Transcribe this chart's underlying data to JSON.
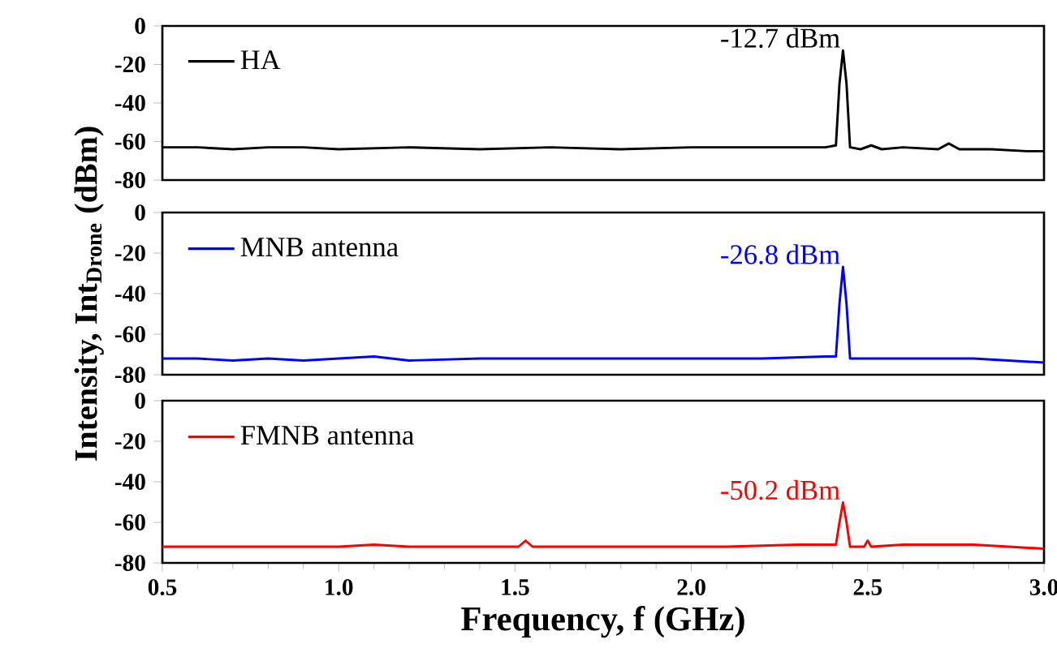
{
  "chart_data": [
    {
      "type": "line",
      "xlim": [
        0.5,
        3.0
      ],
      "ylim": [
        -80,
        0
      ],
      "yticks": [
        -80,
        -60,
        -40,
        -20,
        0
      ],
      "tick_labels": "y",
      "legend": "top left",
      "line_style": "solid",
      "series": [
        {
          "name": "HA",
          "color": "#000000",
          "x": [
            0.5,
            0.6,
            0.7,
            0.8,
            0.9,
            1.0,
            1.2,
            1.4,
            1.6,
            1.8,
            2.0,
            2.2,
            2.38,
            2.41,
            2.42,
            2.43,
            2.44,
            2.45,
            2.48,
            2.51,
            2.54,
            2.6,
            2.7,
            2.73,
            2.76,
            2.85,
            2.95,
            3.0
          ],
          "values": [
            -63,
            -63,
            -64,
            -63,
            -63,
            -64,
            -63,
            -64,
            -63,
            -64,
            -63,
            -63,
            -63,
            -62,
            -30,
            -12.7,
            -30,
            -63,
            -64,
            -62,
            -64,
            -63,
            -64,
            -61,
            -64,
            -64,
            -65,
            -65
          ]
        }
      ],
      "annotations": [
        "-12.7 dBm"
      ]
    },
    {
      "type": "line",
      "xlim": [
        0.5,
        3.0
      ],
      "ylim": [
        -80,
        0
      ],
      "yticks": [
        -80,
        -60,
        -40,
        -20,
        0
      ],
      "tick_labels": "y",
      "legend": "top left",
      "line_style": "solid",
      "ylabel": "Intensity, Int$_{Drone}$ (dBm)",
      "series": [
        {
          "name": "MNB antenna",
          "color": "#0000ff",
          "x": [
            0.5,
            0.6,
            0.7,
            0.8,
            0.9,
            1.0,
            1.1,
            1.2,
            1.4,
            1.6,
            1.8,
            2.0,
            2.2,
            2.38,
            2.41,
            2.42,
            2.43,
            2.44,
            2.45,
            2.5,
            2.6,
            2.7,
            2.8,
            2.9,
            3.0
          ],
          "values": [
            -72,
            -72,
            -73,
            -72,
            -73,
            -72,
            -71,
            -73,
            -72,
            -72,
            -72,
            -72,
            -72,
            -71,
            -71,
            -45,
            -26.8,
            -45,
            -72,
            -72,
            -72,
            -72,
            -72,
            -73,
            -74
          ]
        }
      ],
      "annotations": [
        "-26.8 dBm"
      ]
    },
    {
      "type": "line",
      "xlim": [
        0.5,
        3.0
      ],
      "ylim": [
        -80,
        0
      ],
      "xticks": [
        {
          "value": 0.5,
          "label": "0.5"
        },
        {
          "value": 1.0,
          "label": "1.0"
        },
        {
          "value": 1.5,
          "label": "1.5"
        },
        {
          "value": 2.0,
          "label": "2.0"
        },
        {
          "value": 2.5,
          "label": "2.5"
        },
        {
          "value": 3.0,
          "label": "3.0"
        }
      ],
      "yticks": [
        -80,
        -60,
        -40,
        -20,
        0
      ],
      "legend": "top left",
      "line_style": "solid",
      "xlabel": "Frequency, f (GHz)",
      "series": [
        {
          "name": "FMNB antenna",
          "color": "#ff0000",
          "x": [
            0.5,
            0.6,
            0.8,
            1.0,
            1.1,
            1.2,
            1.4,
            1.51,
            1.53,
            1.55,
            1.7,
            1.9,
            2.1,
            2.3,
            2.41,
            2.42,
            2.43,
            2.44,
            2.45,
            2.49,
            2.5,
            2.51,
            2.6,
            2.8,
            2.9,
            3.0
          ],
          "values": [
            -72,
            -72,
            -72,
            -72,
            -71,
            -72,
            -72,
            -72,
            -69,
            -72,
            -72,
            -72,
            -72,
            -71,
            -71,
            -60,
            -50.2,
            -60,
            -72,
            -72,
            -69,
            -72,
            -71,
            -71,
            -72,
            -73
          ]
        }
      ],
      "annotations": [
        "-50.2 dBm"
      ]
    }
  ]
}
